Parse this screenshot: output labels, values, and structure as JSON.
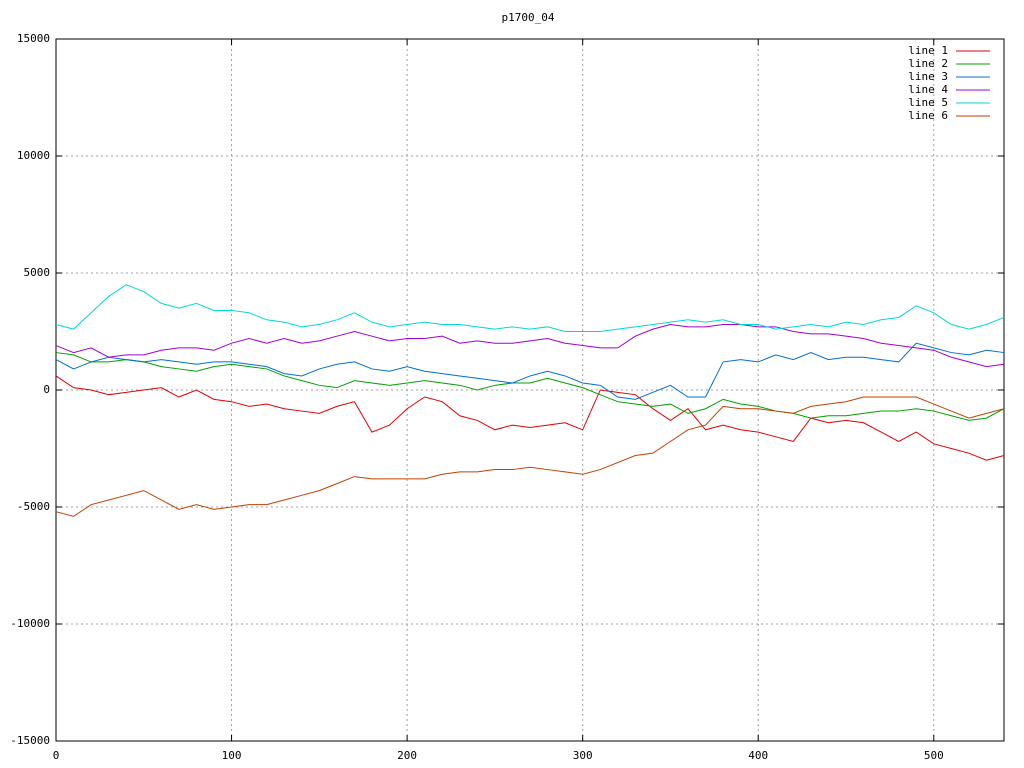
{
  "chart_data": {
    "type": "line",
    "title": "p1700_04",
    "x": [
      0,
      10,
      20,
      30,
      40,
      50,
      60,
      70,
      80,
      90,
      100,
      110,
      120,
      130,
      140,
      150,
      160,
      170,
      180,
      190,
      200,
      210,
      220,
      230,
      240,
      250,
      260,
      270,
      280,
      290,
      300,
      310,
      320,
      330,
      340,
      350,
      360,
      370,
      380,
      390,
      400,
      410,
      420,
      430,
      440,
      450,
      460,
      470,
      480,
      490,
      500,
      510,
      520,
      530,
      540
    ],
    "series": [
      {
        "name": "line 1",
        "color": "#e00000",
        "values": [
          600,
          100,
          0,
          -200,
          -100,
          0,
          100,
          -300,
          0,
          -400,
          -500,
          -700,
          -600,
          -800,
          -900,
          -1000,
          -700,
          -500,
          -1800,
          -1500,
          -800,
          -300,
          -500,
          -1100,
          -1300,
          -1700,
          -1500,
          -1600,
          -1500,
          -1400,
          -1700,
          0,
          -100,
          -200,
          -800,
          -1300,
          -800,
          -1700,
          -1500,
          -1700,
          -1800,
          -2000,
          -2200,
          -1200,
          -1400,
          -1300,
          -1400,
          -1800,
          -2200,
          -1800,
          -2300,
          -2500,
          -2700,
          -3000,
          -2800
        ]
      },
      {
        "name": "line 2",
        "color": "#00a000",
        "values": [
          1600,
          1500,
          1200,
          1200,
          1300,
          1200,
          1000,
          900,
          800,
          1000,
          1100,
          1000,
          900,
          600,
          400,
          200,
          100,
          400,
          300,
          200,
          300,
          400,
          300,
          200,
          0,
          200,
          300,
          300,
          500,
          300,
          100,
          -200,
          -500,
          -600,
          -700,
          -600,
          -1000,
          -800,
          -400,
          -600,
          -700,
          -900,
          -1000,
          -1200,
          -1100,
          -1100,
          -1000,
          -900,
          -900,
          -800,
          -900,
          -1100,
          -1300,
          -1200,
          -800
        ]
      },
      {
        "name": "line 3",
        "color": "#0070d0",
        "values": [
          1300,
          900,
          1200,
          1400,
          1300,
          1200,
          1300,
          1200,
          1100,
          1200,
          1200,
          1100,
          1000,
          700,
          600,
          900,
          1100,
          1200,
          900,
          800,
          1000,
          800,
          700,
          600,
          500,
          400,
          300,
          600,
          800,
          600,
          300,
          200,
          -300,
          -400,
          -100,
          200,
          -300,
          -300,
          1200,
          1300,
          1200,
          1500,
          1300,
          1600,
          1300,
          1400,
          1400,
          1300,
          1200,
          2000,
          1800,
          1600,
          1500,
          1700,
          1600
        ]
      },
      {
        "name": "line 4",
        "color": "#a000d0",
        "values": [
          1900,
          1600,
          1800,
          1400,
          1500,
          1500,
          1700,
          1800,
          1800,
          1700,
          2000,
          2200,
          2000,
          2200,
          2000,
          2100,
          2300,
          2500,
          2300,
          2100,
          2200,
          2200,
          2300,
          2000,
          2100,
          2000,
          2000,
          2100,
          2200,
          2000,
          1900,
          1800,
          1800,
          2300,
          2600,
          2800,
          2700,
          2700,
          2800,
          2800,
          2700,
          2700,
          2500,
          2400,
          2400,
          2300,
          2200,
          2000,
          1900,
          1800,
          1700,
          1400,
          1200,
          1000,
          1100
        ]
      },
      {
        "name": "line 5",
        "color": "#00d8d8",
        "values": [
          2800,
          2600,
          3300,
          4000,
          4500,
          4200,
          3700,
          3500,
          3700,
          3400,
          3400,
          3300,
          3000,
          2900,
          2700,
          2800,
          3000,
          3300,
          2900,
          2700,
          2800,
          2900,
          2800,
          2800,
          2700,
          2600,
          2700,
          2600,
          2700,
          2500,
          2500,
          2500,
          2600,
          2700,
          2800,
          2900,
          3000,
          2900,
          3000,
          2800,
          2800,
          2600,
          2700,
          2800,
          2700,
          2900,
          2800,
          3000,
          3100,
          3600,
          3300,
          2800,
          2600,
          2800,
          3100
        ]
      },
      {
        "name": "line 6",
        "color": "#c04000",
        "values": [
          -5200,
          -5400,
          -4900,
          -4700,
          -4500,
          -4300,
          -4700,
          -5100,
          -4900,
          -5100,
          -5000,
          -4900,
          -4900,
          -4700,
          -4500,
          -4300,
          -4000,
          -3700,
          -3800,
          -3800,
          -3800,
          -3800,
          -3600,
          -3500,
          -3500,
          -3400,
          -3400,
          -3300,
          -3400,
          -3500,
          -3600,
          -3400,
          -3100,
          -2800,
          -2700,
          -2200,
          -1700,
          -1500,
          -700,
          -800,
          -800,
          -900,
          -1000,
          -700,
          -600,
          -500,
          -300,
          -300,
          -300,
          -300,
          -600,
          -900,
          -1200,
          -1000,
          -800
        ]
      }
    ],
    "xlim": [
      0,
      540
    ],
    "xticks": [
      0,
      100,
      200,
      300,
      400,
      500
    ],
    "ylim": [
      -15000,
      15000
    ],
    "yticks": [
      -15000,
      -10000,
      -5000,
      0,
      5000,
      10000,
      15000
    ],
    "grid": true,
    "legend": "top-right"
  }
}
